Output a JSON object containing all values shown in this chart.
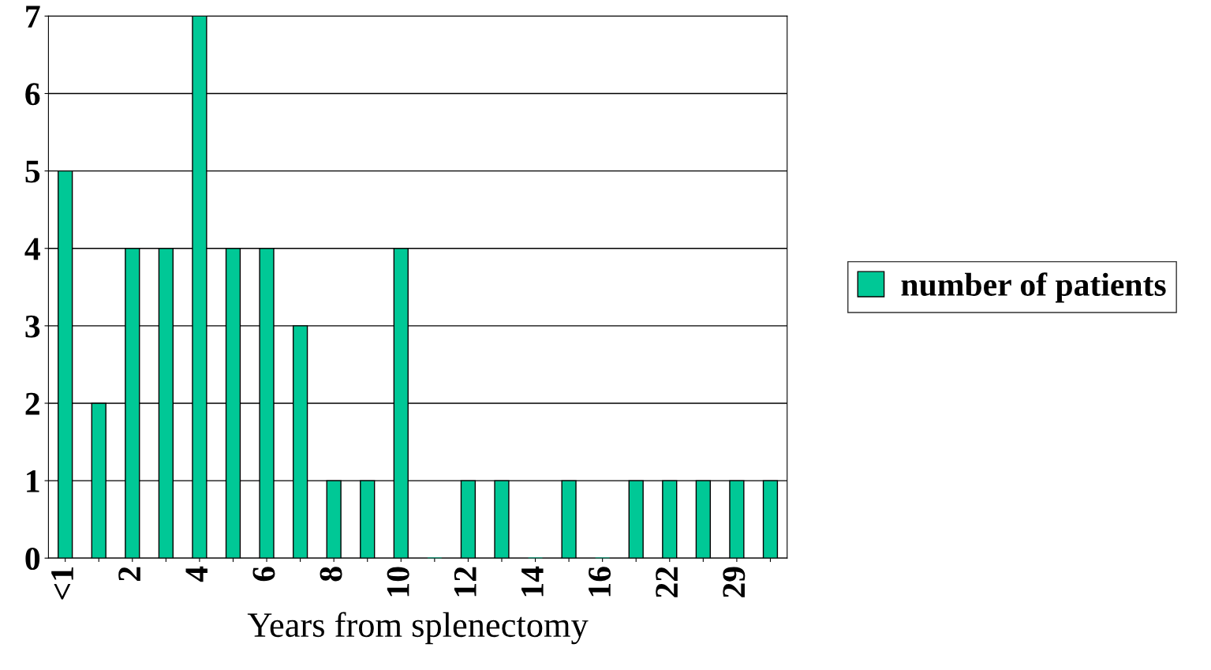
{
  "chart_data": {
    "type": "bar",
    "categories": [
      "<1",
      null,
      "2",
      null,
      "4",
      null,
      "6",
      null,
      "8",
      null,
      "10",
      null,
      "12",
      null,
      "14",
      null,
      "16",
      null,
      "22",
      null,
      "29",
      null
    ],
    "series": [
      {
        "name": "number of patients",
        "color": "#00c896",
        "values": [
          5,
          2,
          4,
          4,
          7,
          4,
          4,
          3,
          1,
          1,
          4,
          0,
          1,
          1,
          0,
          1,
          0,
          1,
          1,
          1,
          1,
          1
        ]
      }
    ],
    "xlabel": "Years from splenectomy",
    "ylim": [
      0,
      7
    ],
    "yticks": [
      0,
      1,
      2,
      3,
      4,
      5,
      6,
      7
    ],
    "grid": "y",
    "legend": "right"
  }
}
